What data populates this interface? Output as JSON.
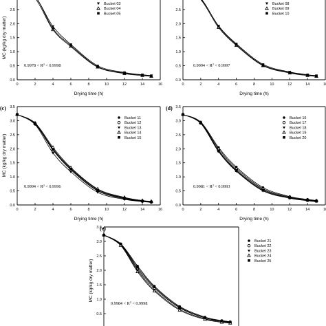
{
  "colors": {
    "axis": "#000000",
    "curve": "#000000",
    "marker": "#000000",
    "background": "#ffffff"
  },
  "chart_data": [
    {
      "type": "scatter",
      "panel_label": "",
      "xlabel": "Drying time (h)",
      "ylabel": "MC (kg/kg dry matter)",
      "xlim": [
        0,
        16
      ],
      "ylim": [
        0,
        3.5
      ],
      "xticks": [
        "0",
        "2",
        "4",
        "6",
        "8",
        "10",
        "12",
        "14",
        "16"
      ],
      "yticks": [
        "0.0",
        "0.5",
        "1.0",
        "1.5",
        "2.0",
        "2.5",
        "3.0",
        "3.5"
      ],
      "grid": false,
      "legend": "top-right",
      "annotation": {
        "prefix": "0.9978 < R",
        "sup": "2",
        "suffix": " < 0.9998"
      },
      "x": [
        0,
        2,
        4,
        6,
        9,
        12,
        14,
        15
      ],
      "series": [
        {
          "name": "Bucket 03",
          "marker": "triangle-down",
          "values": [
            3.22,
            2.95,
            1.9,
            1.26,
            0.5,
            0.26,
            0.18,
            0.15
          ]
        },
        {
          "name": "Bucket 04",
          "marker": "triangle-open",
          "values": [
            3.22,
            2.9,
            1.78,
            1.18,
            0.45,
            0.22,
            0.15,
            0.12
          ]
        },
        {
          "name": "Bucket 05",
          "marker": "square",
          "values": [
            3.22,
            2.97,
            1.82,
            1.22,
            0.47,
            0.24,
            0.17,
            0.14
          ]
        }
      ]
    },
    {
      "type": "scatter",
      "panel_label": "",
      "xlabel": "Drying time (h)",
      "ylabel": "",
      "xlim": [
        0,
        16
      ],
      "ylim": [
        0,
        3.5
      ],
      "xticks": [
        "0",
        "2",
        "4",
        "6",
        "8",
        "10",
        "12",
        "14",
        "16"
      ],
      "yticks": [
        "0.0",
        "0.5",
        "1.0",
        "1.5",
        "2.0",
        "2.5",
        "3.0",
        "3.5"
      ],
      "grid": false,
      "legend": "top-right",
      "annotation": {
        "prefix": "0.9994 < R",
        "sup": "2",
        "suffix": " < 0.9997"
      },
      "x": [
        0,
        2,
        4,
        6,
        9,
        12,
        14,
        15
      ],
      "series": [
        {
          "name": "Bucket 08",
          "marker": "triangle-down",
          "values": [
            3.22,
            2.88,
            1.92,
            1.28,
            0.55,
            0.28,
            0.18,
            0.15
          ]
        },
        {
          "name": "Bucket 09",
          "marker": "triangle-open",
          "values": [
            3.22,
            2.85,
            1.86,
            1.22,
            0.5,
            0.24,
            0.15,
            0.12
          ]
        },
        {
          "name": "Bucket 10",
          "marker": "square",
          "values": [
            3.22,
            2.9,
            1.9,
            1.25,
            0.52,
            0.26,
            0.17,
            0.14
          ]
        }
      ]
    },
    {
      "type": "scatter",
      "panel_label": "(c)",
      "xlabel": "Drying time (h)",
      "ylabel": "MC (kg/kg dry matter)",
      "xlim": [
        0,
        16
      ],
      "ylim": [
        0,
        3.5
      ],
      "xticks": [
        "0",
        "2",
        "4",
        "6",
        "8",
        "10",
        "12",
        "14",
        "16"
      ],
      "yticks": [
        "0.0",
        "0.5",
        "1.0",
        "1.5",
        "2.0",
        "2.5",
        "3.0",
        "3.5"
      ],
      "grid": false,
      "legend": "top-right",
      "annotation": {
        "prefix": "0.9994 < R",
        "sup": "2",
        "suffix": " < 0.9996"
      },
      "x": [
        0,
        2,
        4,
        6,
        9,
        12,
        14,
        15
      ],
      "series": [
        {
          "name": "Bucket 11",
          "marker": "circle",
          "values": [
            3.22,
            2.9,
            2.0,
            1.3,
            0.55,
            0.25,
            0.15,
            0.12
          ]
        },
        {
          "name": "Bucket 12",
          "marker": "circle-open",
          "values": [
            3.22,
            2.88,
            1.95,
            1.25,
            0.5,
            0.22,
            0.13,
            0.1
          ]
        },
        {
          "name": "Bucket 13",
          "marker": "triangle-down",
          "values": [
            3.22,
            2.86,
            1.85,
            1.18,
            0.45,
            0.2,
            0.12,
            0.09
          ]
        },
        {
          "name": "Bucket 14",
          "marker": "triangle-open",
          "values": [
            3.22,
            2.92,
            2.05,
            1.33,
            0.57,
            0.27,
            0.16,
            0.13
          ]
        },
        {
          "name": "Bucket 15",
          "marker": "square",
          "values": [
            3.22,
            2.9,
            1.98,
            1.28,
            0.52,
            0.24,
            0.14,
            0.11
          ]
        }
      ]
    },
    {
      "type": "scatter",
      "panel_label": "(d)",
      "xlabel": "Drying time (h)",
      "ylabel": "",
      "xlim": [
        0,
        16
      ],
      "ylim": [
        0,
        3.5
      ],
      "xticks": [
        "0",
        "2",
        "4",
        "6",
        "8",
        "10",
        "12",
        "14",
        "16"
      ],
      "yticks": [
        "0.0",
        "0.5",
        "1.0",
        "1.5",
        "2.0",
        "2.5",
        "3.0",
        "3.5"
      ],
      "grid": false,
      "legend": "top-right",
      "annotation": {
        "prefix": "0.9981 < R",
        "sup": "2",
        "suffix": " < 0.9993"
      },
      "x": [
        0,
        2,
        4,
        6,
        9,
        12,
        14,
        15
      ],
      "series": [
        {
          "name": "Bucket 16",
          "marker": "circle",
          "values": [
            3.22,
            2.95,
            2.05,
            1.35,
            0.62,
            0.3,
            0.2,
            0.16
          ]
        },
        {
          "name": "Bucket 17",
          "marker": "circle-open",
          "values": [
            3.22,
            2.92,
            1.95,
            1.25,
            0.55,
            0.26,
            0.17,
            0.14
          ]
        },
        {
          "name": "Bucket 18",
          "marker": "triangle-down",
          "values": [
            3.22,
            2.9,
            1.9,
            1.2,
            0.5,
            0.24,
            0.15,
            0.12
          ]
        },
        {
          "name": "Bucket 19",
          "marker": "triangle-open",
          "values": [
            3.22,
            2.93,
            2.0,
            1.3,
            0.58,
            0.28,
            0.18,
            0.15
          ]
        },
        {
          "name": "Bucket 20",
          "marker": "square",
          "values": [
            3.22,
            2.91,
            1.92,
            1.22,
            0.52,
            0.25,
            0.16,
            0.13
          ]
        }
      ]
    },
    {
      "type": "scatter",
      "panel_label": "(e)",
      "xlabel": "",
      "ylabel": "MC (kg/kg dry matter)",
      "xlim": [
        0,
        16
      ],
      "ylim": [
        0,
        3.5
      ],
      "xticks": [],
      "yticks": [
        "0.0",
        "0.5",
        "1.0",
        "1.5",
        "2.0",
        "2.5",
        "3.0",
        "3.5"
      ],
      "grid": false,
      "legend": "top-right",
      "annotation": {
        "prefix": "0.9984 < R",
        "sup": "2",
        "suffix": " < 0.9998"
      },
      "x": [
        0,
        2,
        4,
        6,
        9,
        12,
        14,
        15
      ],
      "series": [
        {
          "name": "Bucket 21",
          "marker": "circle",
          "values": [
            3.22,
            2.92,
            2.15,
            1.45,
            0.75,
            0.38,
            0.26,
            0.22
          ]
        },
        {
          "name": "Bucket 22",
          "marker": "circle-open",
          "values": [
            3.22,
            2.9,
            2.05,
            1.38,
            0.7,
            0.35,
            0.24,
            0.2
          ]
        },
        {
          "name": "Bucket 23",
          "marker": "triangle-down",
          "values": [
            3.22,
            2.88,
            2.0,
            1.32,
            0.65,
            0.32,
            0.22,
            0.18
          ]
        },
        {
          "name": "Bucket 24",
          "marker": "triangle-open",
          "values": [
            3.22,
            2.86,
            1.95,
            1.28,
            0.62,
            0.3,
            0.2,
            0.17
          ]
        },
        {
          "name": "Bucket 25",
          "marker": "square",
          "values": [
            3.22,
            2.91,
            2.1,
            1.42,
            0.72,
            0.36,
            0.25,
            0.21
          ]
        }
      ]
    }
  ]
}
